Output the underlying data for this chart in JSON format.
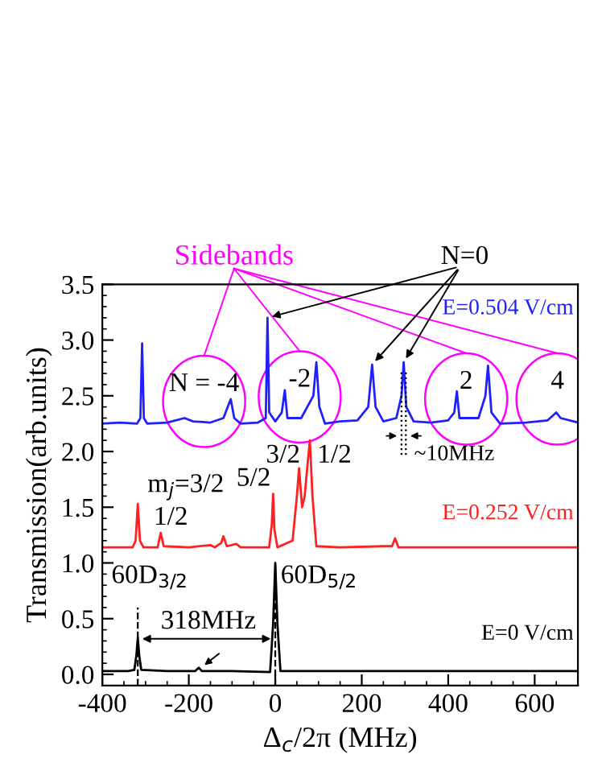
{
  "chart_data": {
    "type": "line",
    "xlabel": "Δ$_{c}$/2π (MHz)",
    "ylabel": "Transmission(arb.units)",
    "xlim": [
      -400,
      700
    ],
    "xticks": [
      -400,
      -200,
      0,
      200,
      400,
      600
    ],
    "ylim": [
      -0.1,
      3.5
    ],
    "yticks": [
      {
        "value": 0,
        "label": "0.0"
      },
      0.5,
      {
        "value": 1,
        "label": "1.0"
      },
      1.5,
      {
        "value": 2,
        "label": "2.0"
      },
      2.5,
      {
        "value": 3,
        "label": "3.0"
      },
      3.5
    ],
    "grid": false,
    "legend": false,
    "marker": "none",
    "line_style": "solid",
    "series": [
      {
        "name": "E=0 V/cm",
        "color": "#000000",
        "x": [
          -400,
          -340,
          -326,
          -321,
          -318,
          -315,
          -310,
          -250,
          -185,
          -177,
          -170,
          -100,
          -12,
          -5,
          0,
          5,
          12,
          100,
          300,
          500,
          700
        ],
        "values": [
          0.03,
          0.03,
          0.04,
          0.18,
          0.33,
          0.18,
          0.04,
          0.03,
          0.03,
          0.06,
          0.03,
          0.03,
          0.02,
          0.45,
          1.0,
          0.45,
          0.03,
          0.03,
          0.03,
          0.03,
          0.03
        ]
      },
      {
        "name": "E=0.252 V/cm",
        "color": "#ff2020",
        "x": [
          -400,
          -330,
          -323,
          -318,
          -313,
          -305,
          -272,
          -265,
          -258,
          -200,
          -150,
          -140,
          -125,
          -120,
          -112,
          -90,
          -80,
          -14,
          -8,
          -5,
          -2,
          5,
          40,
          50,
          55,
          62,
          68,
          75,
          80,
          86,
          95,
          150,
          250,
          270,
          277,
          285,
          400,
          700
        ],
        "values": [
          1.14,
          1.14,
          1.2,
          1.53,
          1.2,
          1.14,
          1.14,
          1.27,
          1.15,
          1.14,
          1.16,
          1.14,
          1.18,
          1.24,
          1.15,
          1.17,
          1.14,
          1.14,
          1.35,
          1.62,
          1.3,
          1.14,
          1.2,
          1.6,
          1.85,
          1.5,
          1.6,
          1.9,
          2.1,
          1.6,
          1.15,
          1.14,
          1.15,
          1.15,
          1.22,
          1.14,
          1.14,
          1.14
        ]
      },
      {
        "name": "E=0.504 V/cm",
        "color": "#2020ff",
        "x": [
          -400,
          -360,
          -320,
          -312,
          -308,
          -304,
          -296,
          -250,
          -210,
          -190,
          -150,
          -120,
          -103,
          -95,
          -80,
          -40,
          -22,
          -18,
          -14,
          0,
          15,
          22,
          28,
          60,
          88,
          95,
          102,
          115,
          150,
          190,
          215,
          224,
          232,
          250,
          280,
          292,
          297,
          303,
          320,
          360,
          400,
          414,
          420,
          426,
          470,
          486,
          492,
          500,
          520,
          580,
          630,
          650,
          660,
          700
        ],
        "values": [
          2.25,
          2.26,
          2.25,
          2.3,
          2.97,
          2.3,
          2.25,
          2.26,
          2.3,
          2.27,
          2.26,
          2.3,
          2.47,
          2.3,
          2.25,
          2.26,
          2.3,
          3.2,
          2.35,
          2.27,
          2.35,
          2.55,
          2.3,
          2.3,
          2.5,
          2.8,
          2.4,
          2.25,
          2.27,
          2.28,
          2.4,
          2.78,
          2.4,
          2.27,
          2.3,
          2.5,
          2.8,
          2.4,
          2.27,
          2.26,
          2.28,
          2.35,
          2.54,
          2.3,
          2.3,
          2.5,
          2.77,
          2.35,
          2.25,
          2.26,
          2.28,
          2.35,
          2.3,
          2.26
        ]
      }
    ],
    "ref_lines": [
      {
        "axis": "x",
        "value": -318,
        "color": "#000000",
        "line_style": "dashed"
      },
      {
        "axis": "x",
        "value": 0,
        "color": "#000000",
        "line_style": "dashed"
      },
      {
        "axis": "x",
        "value": 292,
        "color": "#000000",
        "line_style": "dotted"
      },
      {
        "axis": "x",
        "value": 302,
        "color": "#000000",
        "line_style": "dotted"
      }
    ],
    "annotations": [
      "Sidebands",
      {
        "text": "N=0",
        "x": -18,
        "y": 3.2
      },
      "N = -4",
      "-2",
      "2",
      "4",
      "~10MHz",
      "m$_{j}$=3/2",
      "1/2",
      "5/2",
      "3/2",
      "1/2",
      "60D$_{3/2}$",
      "60D$_{5/2}$",
      "318MHz"
    ]
  }
}
